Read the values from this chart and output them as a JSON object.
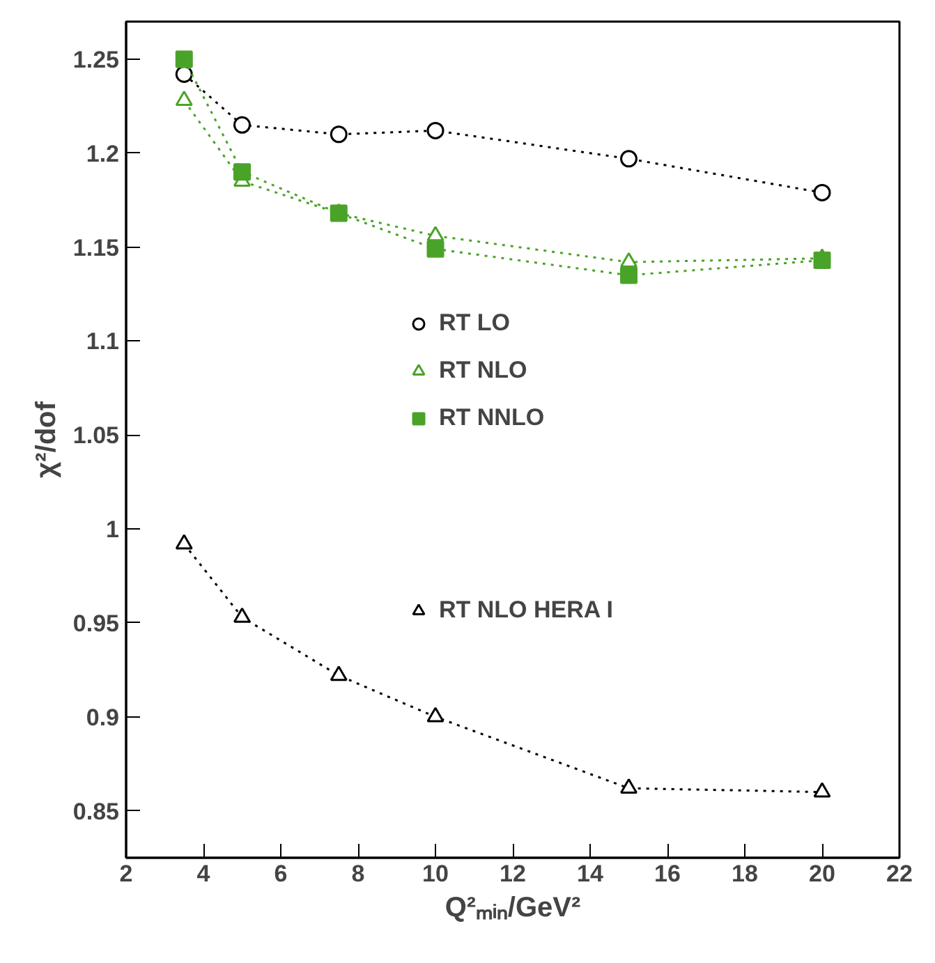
{
  "chart_data": {
    "type": "line",
    "ylabel": "χ²/dof",
    "xlabel": "Q²ₘᵢₙ/GeV²",
    "x": [
      3.5,
      5,
      7.5,
      10,
      15,
      20
    ],
    "xlim": [
      2,
      22
    ],
    "xticks": [
      2,
      4,
      6,
      8,
      10,
      12,
      14,
      16,
      18,
      20,
      22
    ],
    "ylim": [
      0.825,
      1.27
    ],
    "yticks": [
      0.85,
      0.9,
      0.95,
      1,
      1.05,
      1.1,
      1.15,
      1.2,
      1.25
    ],
    "grid": false,
    "legend": "right",
    "line_style": "dotted",
    "series": [
      {
        "name": "RT LO",
        "color": "#000000",
        "marker": "circle",
        "values": [
          1.242,
          1.215,
          1.21,
          1.212,
          1.197,
          1.179
        ]
      },
      {
        "name": "RT NLO",
        "color": "#4aa329",
        "marker": "triangle",
        "values": [
          1.228,
          1.185,
          1.168,
          1.156,
          1.142,
          1.144
        ]
      },
      {
        "name": "RT NNLO",
        "color": "#4aa329",
        "marker": "square",
        "values": [
          1.25,
          1.19,
          1.168,
          1.149,
          1.135,
          1.143
        ]
      },
      {
        "name": "RT NLO HERA I",
        "color": "#000000",
        "marker": "triangle",
        "values": [
          0.992,
          0.953,
          0.922,
          0.9,
          0.862,
          0.86
        ]
      }
    ]
  }
}
